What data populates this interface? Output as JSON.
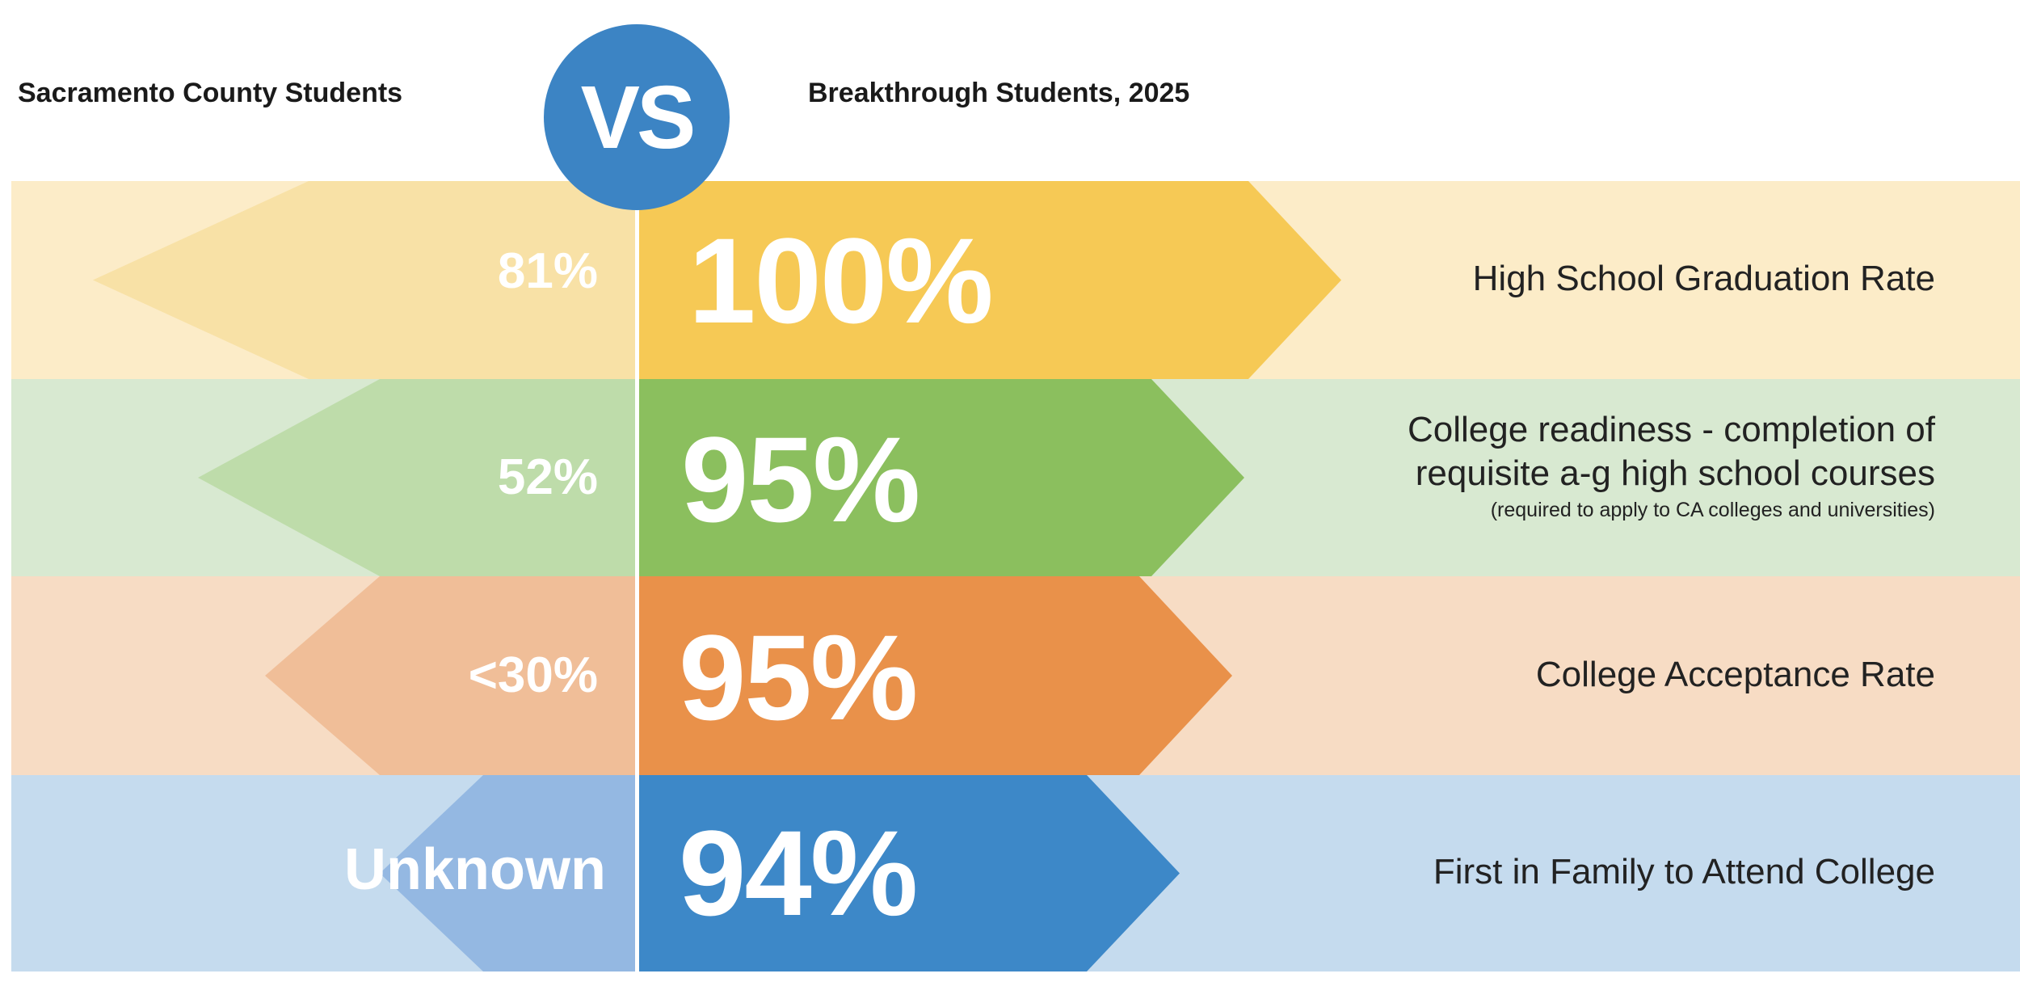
{
  "header": {
    "left": "Sacramento County Students",
    "vs": "VS",
    "right": "Breakthrough Students, 2025"
  },
  "colors": {
    "yellow": {
      "band": "#fcecc8",
      "left": "#f8e1a6",
      "right": "#f6c955"
    },
    "green": {
      "band": "#d8e9d1",
      "left": "#bedcaa",
      "right": "#8bbf5e"
    },
    "orange": {
      "band": "#f7dcc4",
      "left": "#f0be98",
      "right": "#e9914a"
    },
    "blue": {
      "band": "#c5dbee",
      "left": "#94b8e2",
      "right": "#3d88c8"
    }
  },
  "chart_data": {
    "type": "table",
    "columns": [
      "Sacramento County Students",
      "Breakthrough Students, 2025",
      ""
    ],
    "rows": [
      {
        "county": "81%",
        "breakthrough": "100%",
        "metric": [
          "High School Graduation Rate"
        ],
        "note": ""
      },
      {
        "county": "52%",
        "breakthrough": "95%",
        "metric": [
          "College readiness - completion of",
          "requisite a-g high school courses"
        ],
        "note": "(required to apply to CA colleges and universities)"
      },
      {
        "county": "<30%",
        "breakthrough": "95%",
        "metric": [
          "College Acceptance Rate"
        ],
        "note": ""
      },
      {
        "county": "Unknown",
        "breakthrough": "94%",
        "metric": [
          "First in Family to Attend College"
        ],
        "note": ""
      }
    ]
  }
}
